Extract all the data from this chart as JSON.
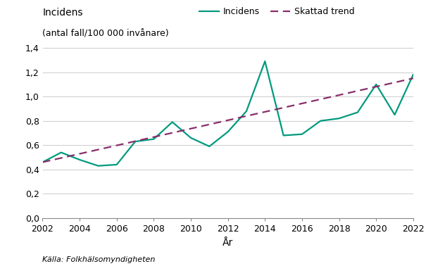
{
  "years": [
    2002,
    2003,
    2004,
    2005,
    2006,
    2007,
    2008,
    2009,
    2010,
    2011,
    2012,
    2013,
    2014,
    2015,
    2016,
    2017,
    2018,
    2019,
    2020,
    2021,
    2022
  ],
  "incidens": [
    0.46,
    0.54,
    0.48,
    0.43,
    0.44,
    0.63,
    0.65,
    0.79,
    0.66,
    0.59,
    0.71,
    0.88,
    1.29,
    0.68,
    0.69,
    0.8,
    0.82,
    0.87,
    1.1,
    0.85,
    1.18
  ],
  "trend_years": [
    2002,
    2022
  ],
  "trend_values": [
    0.46,
    1.15
  ],
  "incidens_color": "#009a7e",
  "trend_color": "#882d6b",
  "title_line1": "Incidens",
  "title_line2": "(antal fall/100 000 invånare)",
  "xlabel": "År",
  "ylim": [
    0,
    1.4
  ],
  "yticks": [
    0.0,
    0.2,
    0.4,
    0.6,
    0.8,
    1.0,
    1.2,
    1.4
  ],
  "ytick_labels": [
    "0,0",
    "0,2",
    "0,4",
    "0,6",
    "0,8",
    "1,0",
    "1,2",
    "1,4"
  ],
  "xticks": [
    2002,
    2004,
    2006,
    2008,
    2010,
    2012,
    2014,
    2016,
    2018,
    2020,
    2022
  ],
  "legend_incidens": "Incidens",
  "legend_trend": "Skattad trend",
  "source_text": "Källa: Folkhälsomyndigheten",
  "bg_color": "#ffffff",
  "grid_color": "#cccccc",
  "title_fontsize": 10,
  "subtitle_fontsize": 9,
  "axis_fontsize": 10,
  "tick_fontsize": 9,
  "legend_fontsize": 9,
  "source_fontsize": 8
}
